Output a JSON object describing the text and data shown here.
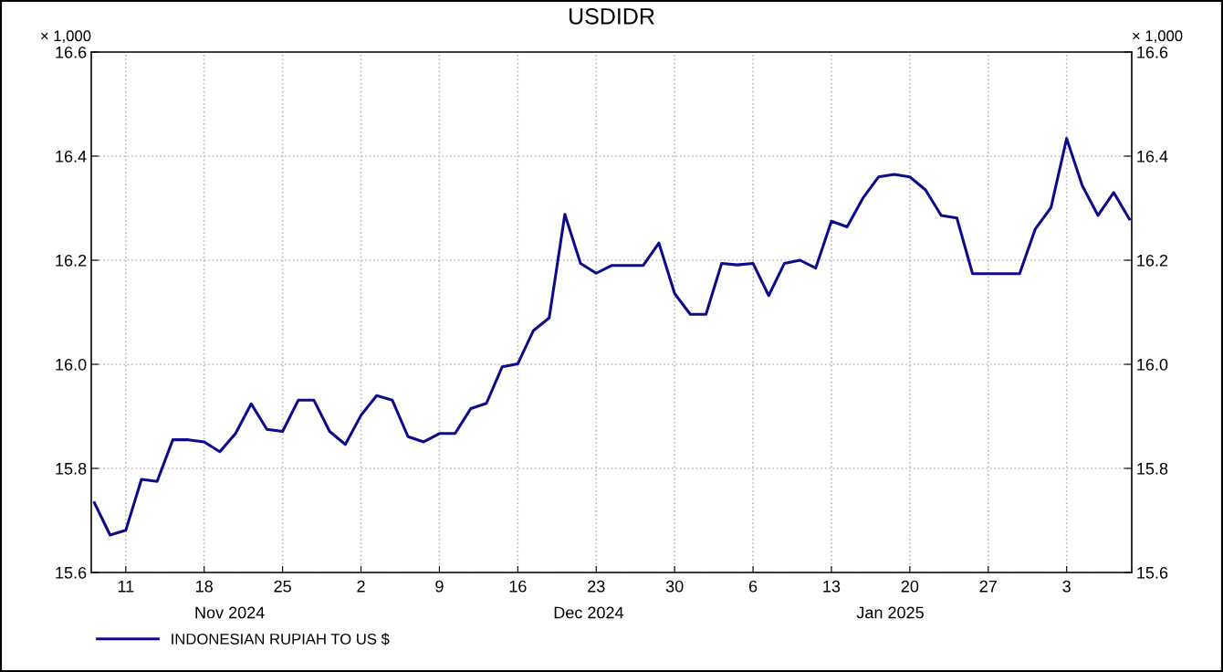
{
  "chart_data": {
    "type": "line",
    "title": "USDIDR",
    "ylabel": "× 1,000",
    "y2label": "× 1,000",
    "categories": [
      null,
      null,
      "11",
      null,
      null,
      null,
      null,
      "18",
      null,
      null,
      null,
      null,
      "25",
      null,
      null,
      null,
      null,
      "2",
      null,
      null,
      null,
      null,
      "9",
      null,
      null,
      null,
      null,
      "16",
      null,
      null,
      null,
      null,
      "23",
      null,
      null,
      null,
      null,
      "30",
      null,
      null,
      null,
      null,
      "6",
      null,
      null,
      null,
      null,
      "13",
      null,
      null,
      null,
      null,
      "20",
      null,
      null,
      null,
      null,
      "27",
      null,
      null,
      null,
      null,
      "3",
      null,
      null,
      null,
      null
    ],
    "series": [
      {
        "name": "INDONESIAN RUPIAH TO US $",
        "color": "#0c0c8a",
        "values": [
          15.734,
          15.672,
          15.681,
          15.779,
          15.775,
          15.855,
          15.855,
          15.851,
          15.832,
          15.867,
          15.924,
          15.875,
          15.871,
          15.931,
          15.931,
          15.871,
          15.846,
          15.902,
          15.94,
          15.931,
          15.861,
          15.851,
          15.867,
          15.867,
          15.915,
          15.925,
          15.995,
          16.001,
          16.065,
          16.089,
          16.288,
          16.194,
          16.175,
          16.19,
          16.19,
          16.19,
          16.233,
          16.136,
          16.096,
          16.096,
          16.194,
          16.191,
          16.194,
          16.132,
          16.194,
          16.2,
          16.185,
          16.275,
          16.264,
          16.319,
          16.36,
          16.365,
          16.36,
          16.335,
          16.286,
          16.281,
          16.174,
          16.174,
          16.174,
          16.174,
          16.26,
          16.301,
          16.434,
          16.343,
          16.286,
          16.33,
          16.279
        ]
      }
    ],
    "ylim": [
      15.6,
      16.6
    ],
    "yticks": [
      {
        "value": 15.6,
        "label": "15.6"
      },
      {
        "value": 15.8,
        "label": "15.8"
      },
      {
        "value": 16.0,
        "label": "16.0"
      },
      {
        "value": 16.2,
        "label": "16.2"
      },
      {
        "value": 16.4,
        "label": "16.4"
      },
      {
        "value": 16.6,
        "label": "16.6"
      }
    ],
    "y2lim": [
      15.6,
      16.6
    ],
    "y2ticks": [
      {
        "value": 15.6,
        "label": "15.6"
      },
      {
        "value": 15.8,
        "label": "15.8"
      },
      {
        "value": 16.0,
        "label": "16.0"
      },
      {
        "value": 16.2,
        "label": "16.2"
      },
      {
        "value": 16.4,
        "label": "16.4"
      },
      {
        "value": 16.6,
        "label": "16.6"
      }
    ],
    "annotations": [
      "Nov 2024",
      "Dec 2024",
      "Jan 2025"
    ],
    "grid": true,
    "legend": "bottom left",
    "line_style": "solid",
    "marker": "none"
  }
}
